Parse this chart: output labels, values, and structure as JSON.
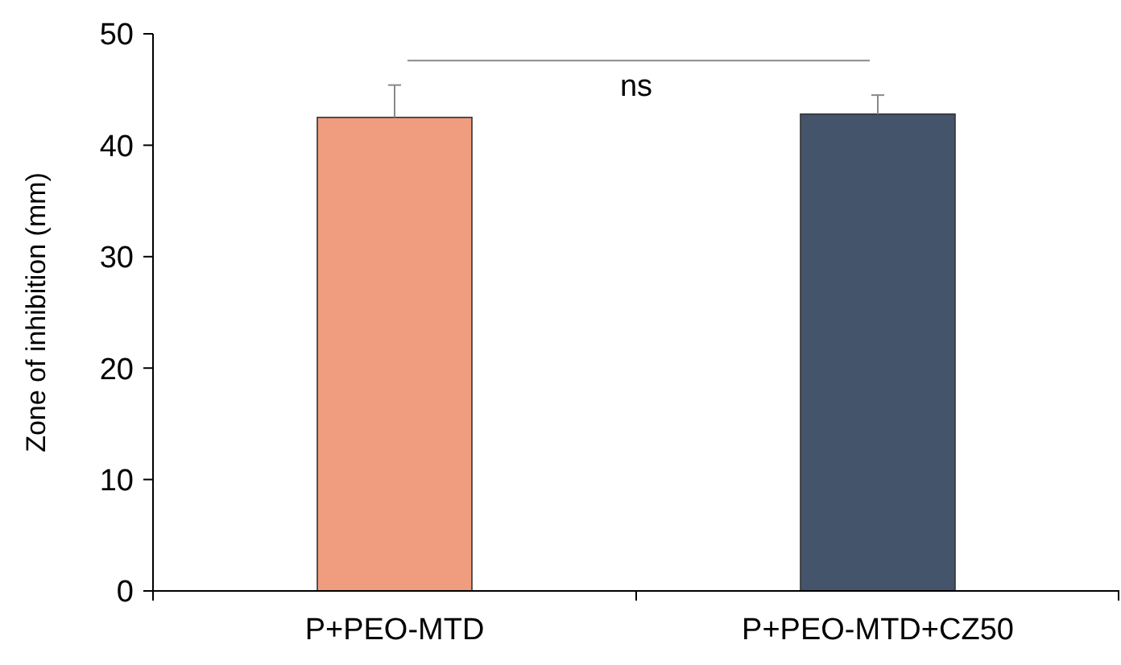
{
  "chart_data": {
    "type": "bar",
    "ylabel": "Zone of inhibition (mm)",
    "categories": [
      "P+PEO-MTD",
      "P+PEO-MTD+CZ50"
    ],
    "values": [
      42.5,
      42.8
    ],
    "colors": [
      "#f09c7f",
      "#44546a"
    ],
    "errors": [
      [
        42.5,
        45.4
      ],
      [
        42.8,
        44.5
      ]
    ],
    "ylim": [
      0,
      50
    ],
    "yticks": [
      0,
      10,
      20,
      30,
      40,
      50
    ],
    "grid": false,
    "annotations": [
      "ns"
    ]
  }
}
